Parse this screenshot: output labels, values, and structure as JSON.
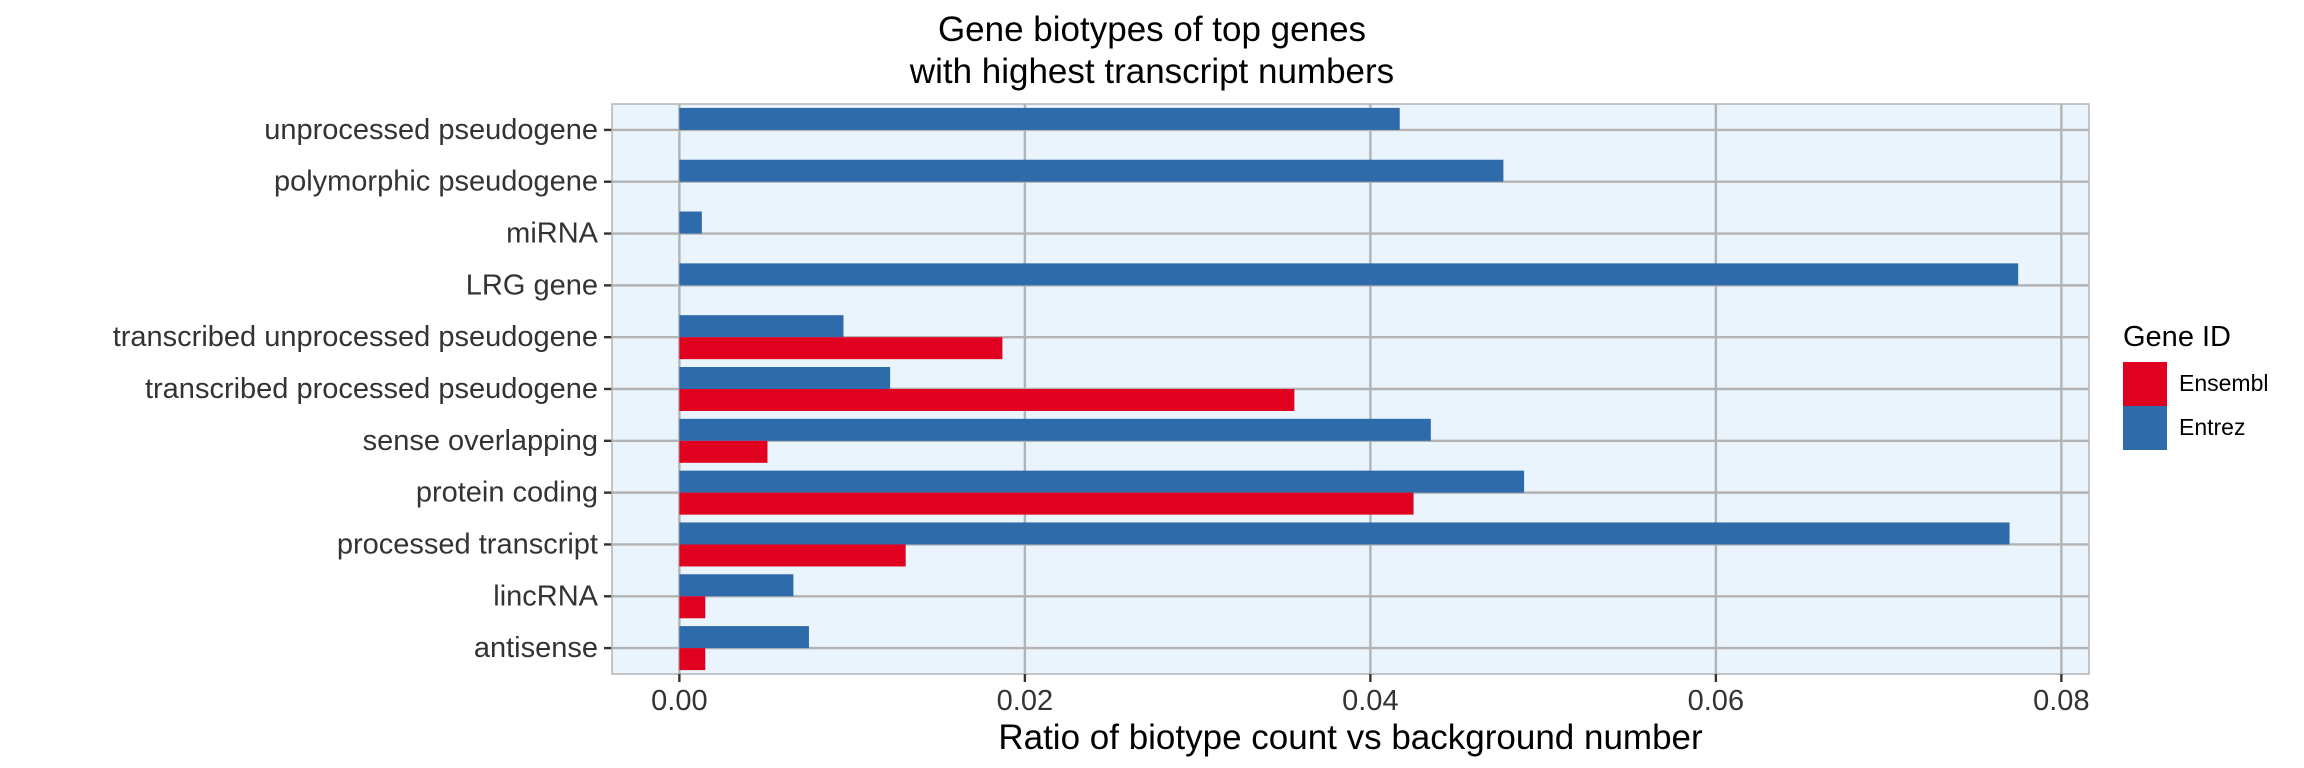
{
  "chart_data": {
    "type": "bar",
    "orientation": "horizontal",
    "title": [
      "Gene biotypes of top genes",
      "with highest transcript numbers"
    ],
    "xlabel": "Ratio of biotype count vs background number",
    "ylabel": "",
    "xlim": [
      -0.0039,
      0.0816
    ],
    "xticks": [
      0.0,
      0.02,
      0.04,
      0.06,
      0.08
    ],
    "xtick_labels": [
      "0.00",
      "0.02",
      "0.04",
      "0.06",
      "0.08"
    ],
    "categories": [
      "unprocessed pseudogene",
      "polymorphic pseudogene",
      "miRNA",
      "LRG gene",
      "transcribed unprocessed pseudogene",
      "transcribed processed pseudogene",
      "sense overlapping",
      "protein coding",
      "processed transcript",
      "lincRNA",
      "antisense"
    ],
    "series": [
      {
        "name": "Ensembl",
        "color": "#E00020",
        "values": [
          null,
          null,
          null,
          null,
          0.0187,
          0.0356,
          0.0051,
          0.0425,
          0.0131,
          0.0015,
          0.0015
        ]
      },
      {
        "name": "Entrez",
        "color": "#2D6BAA",
        "values": [
          0.0417,
          0.0477,
          0.0013,
          0.0775,
          0.0095,
          0.0122,
          0.0435,
          0.0489,
          0.077,
          0.0066,
          0.0075
        ]
      }
    ],
    "legend": {
      "title": "Gene ID",
      "position": "right"
    },
    "grid": true,
    "panel_background": "#EAF4FC",
    "grid_color": "#B3B3B3"
  }
}
